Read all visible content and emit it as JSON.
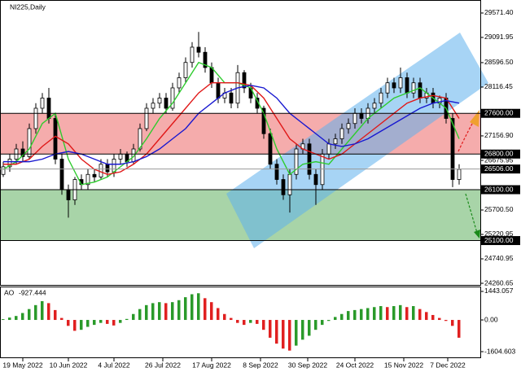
{
  "chart_data": {
    "type": "candlestick",
    "title": "NI225,Daily",
    "xlim": [
      -0.5,
      73.25
    ],
    "xticks": [
      {
        "value": 3,
        "label": "19 May 2022"
      },
      {
        "value": 10,
        "label": "10 Jun 2022"
      },
      {
        "value": 17,
        "label": "4 Jul 2022"
      },
      {
        "value": 24.5,
        "label": "26 Jul 2022"
      },
      {
        "value": 32,
        "label": "17 Aug 2022"
      },
      {
        "value": 39.5,
        "label": "8 Sep 2022"
      },
      {
        "value": 46.75,
        "label": "30 Sep 2022"
      },
      {
        "value": 54,
        "label": "24 Oct 2022"
      },
      {
        "value": 61.5,
        "label": "15 Nov 2022"
      },
      {
        "value": 68.25,
        "label": "7 Dec 2022"
      }
    ],
    "ylim": [
      24229,
      29827
    ],
    "yticks": [
      {
        "value": 29571.4,
        "label": "29571.40"
      },
      {
        "value": 29091.95,
        "label": "29091.95"
      },
      {
        "value": 28596.5,
        "label": "28596.50"
      },
      {
        "value": 28116.45,
        "label": "28116.45"
      },
      {
        "value": 27600,
        "label": "27600.00",
        "style": "level"
      },
      {
        "value": 27156.9,
        "label": "27156.90"
      },
      {
        "value": 26800,
        "label": "26800.00",
        "style": "level"
      },
      {
        "value": 26675.95,
        "label": "26675.95"
      },
      {
        "value": 26506,
        "label": "26506.00",
        "style": "current"
      },
      {
        "value": 26100,
        "label": "26100.00",
        "style": "level"
      },
      {
        "value": 25700.5,
        "label": "25700.50"
      },
      {
        "value": 25220.95,
        "label": "25220.95"
      },
      {
        "value": 25100,
        "label": "25100.00",
        "style": "level"
      },
      {
        "value": 24740.95,
        "label": "24740.95"
      },
      {
        "value": 24260.65,
        "label": "24260.65"
      }
    ],
    "zones": [
      {
        "from": 27600,
        "to": 26800,
        "color": "#f4a3a3"
      },
      {
        "from": 26100,
        "to": 25100,
        "color": "#9fcf9f"
      }
    ],
    "open": [
      26400,
      26550,
      26700,
      26900,
      26750,
      27300,
      27700,
      27900,
      27500,
      26700,
      26100,
      25900,
      26300,
      26200,
      26400,
      26350,
      26600,
      26450,
      26700,
      26800,
      26650,
      26900,
      27300,
      27700,
      27800,
      27900,
      27700,
      28100,
      28300,
      28600,
      28900,
      28800,
      28500,
      28200,
      27900,
      28000,
      27800,
      28400,
      28100,
      27900,
      27700,
      27200,
      26600,
      26300,
      26000,
      26400,
      26900,
      27000,
      26400,
      26200,
      26800,
      27000,
      27100,
      27300,
      27400,
      27600,
      27500,
      27700,
      27800,
      28000,
      28200,
      28100,
      28300,
      28000,
      28200,
      27900,
      28000,
      27800,
      27900,
      27500,
      26300
    ],
    "high": [
      26650,
      26800,
      27000,
      27050,
      27400,
      27800,
      28000,
      28100,
      27600,
      26800,
      26200,
      26350,
      26400,
      26500,
      26500,
      26700,
      26700,
      26800,
      26900,
      26850,
      27000,
      27400,
      27800,
      27900,
      28000,
      28000,
      28200,
      28400,
      28700,
      29000,
      29200,
      28900,
      28600,
      28300,
      28100,
      28100,
      28550,
      28450,
      28200,
      28000,
      27750,
      27300,
      26700,
      26400,
      26500,
      27000,
      27100,
      27100,
      26500,
      26900,
      27100,
      27200,
      27400,
      27500,
      27700,
      27700,
      27800,
      27900,
      28100,
      28300,
      28300,
      28500,
      28400,
      28300,
      28300,
      28100,
      28100,
      27950,
      28000,
      27600,
      26600
    ],
    "low": [
      26350,
      26450,
      26600,
      26650,
      26700,
      27200,
      27600,
      27400,
      26600,
      26000,
      25550,
      25800,
      26100,
      26100,
      26250,
      26300,
      26350,
      26350,
      26600,
      26550,
      26600,
      26850,
      27250,
      27600,
      27700,
      27600,
      27650,
      28000,
      28200,
      28500,
      28700,
      28400,
      28100,
      27800,
      27800,
      27700,
      27700,
      28000,
      27800,
      27600,
      27100,
      26500,
      26200,
      25900,
      25650,
      26300,
      26800,
      26300,
      25800,
      26100,
      26700,
      26900,
      27000,
      27200,
      27300,
      27400,
      27400,
      27600,
      27700,
      27900,
      28000,
      28000,
      27900,
      27900,
      27800,
      27800,
      27700,
      27700,
      27400,
      26150,
      26200
    ],
    "close": [
      26550,
      26700,
      26900,
      26750,
      27300,
      27700,
      27900,
      27500,
      26700,
      26100,
      25900,
      26300,
      26200,
      26400,
      26350,
      26600,
      26450,
      26700,
      26800,
      26650,
      26900,
      27300,
      27700,
      27800,
      27900,
      27700,
      28100,
      28300,
      28600,
      28900,
      28800,
      28500,
      28200,
      27900,
      28000,
      27800,
      28400,
      28100,
      27900,
      27700,
      27200,
      26600,
      26300,
      26000,
      26400,
      26900,
      27000,
      26400,
      26200,
      26800,
      27000,
      27100,
      27300,
      27400,
      27600,
      27500,
      27700,
      27800,
      28000,
      28200,
      28100,
      28300,
      28000,
      28200,
      27900,
      28000,
      27800,
      27900,
      27500,
      26300,
      26500
    ],
    "up_color": "#ffffff",
    "down_color": "#000000",
    "line_x": [
      0,
      2,
      4,
      6,
      8,
      10,
      12,
      14,
      16,
      18,
      20,
      22,
      24,
      26,
      28,
      30,
      32,
      34,
      36,
      38,
      40,
      42,
      44,
      46,
      48,
      50,
      52,
      54,
      56,
      58,
      60,
      62,
      64,
      66,
      68,
      70
    ],
    "lines": [
      {
        "color": "#2ecc2e",
        "values": [
          26500,
          26650,
          26900,
          27400,
          27600,
          26700,
          26200,
          26250,
          26350,
          26550,
          26750,
          27100,
          27500,
          27800,
          28200,
          28600,
          28500,
          28200,
          28200,
          28100,
          27600,
          26900,
          26400,
          26600,
          26650,
          26600,
          26900,
          27200,
          27500,
          27700,
          27900,
          28000,
          28100,
          27900,
          27700,
          27100
        ]
      },
      {
        "color": "#e01818",
        "values": [
          26600,
          26600,
          26700,
          26950,
          27150,
          27000,
          26700,
          26500,
          26400,
          26450,
          26600,
          26800,
          27100,
          27400,
          27700,
          28000,
          28200,
          28200,
          28200,
          28150,
          27900,
          27500,
          27100,
          26900,
          26800,
          26700,
          26800,
          27000,
          27200,
          27400,
          27600,
          27800,
          27900,
          27950,
          27900,
          27500
        ]
      },
      {
        "color": "#1818d0",
        "values": [
          26650,
          26650,
          26650,
          26700,
          26800,
          26850,
          26800,
          26700,
          26600,
          26600,
          26650,
          26750,
          26900,
          27100,
          27300,
          27600,
          27800,
          28000,
          28100,
          28150,
          28100,
          27900,
          27600,
          27400,
          27200,
          27000,
          26950,
          27000,
          27100,
          27250,
          27400,
          27550,
          27700,
          27800,
          27850,
          27800
        ]
      }
    ],
    "ao_label": "AO",
    "ao_current": -927.444,
    "y2lim": [
      -1934,
      1690
    ],
    "y2ticks": [
      1443.057,
      {
        "value": 0,
        "label": "0.00"
      },
      -1604.603
    ],
    "ao": [
      40,
      120,
      200,
      350,
      550,
      750,
      950,
      850,
      500,
      100,
      -300,
      -550,
      -500,
      -350,
      -250,
      -150,
      -200,
      -280,
      -150,
      50,
      300,
      550,
      750,
      850,
      900,
      850,
      900,
      1000,
      1150,
      1300,
      1350,
      1100,
      900,
      600,
      300,
      100,
      -150,
      -250,
      -150,
      -200,
      -500,
      -900,
      -1200,
      -1450,
      -1550,
      -1300,
      -1000,
      -800,
      -500,
      -250,
      -50,
      150,
      300,
      450,
      500,
      550,
      600,
      650,
      700,
      650,
      700,
      750,
      650,
      700,
      550,
      400,
      250,
      100,
      -50,
      -300,
      -900
    ],
    "ao_up_color": "#2a9a2a",
    "ao_down_color": "#e02020"
  }
}
